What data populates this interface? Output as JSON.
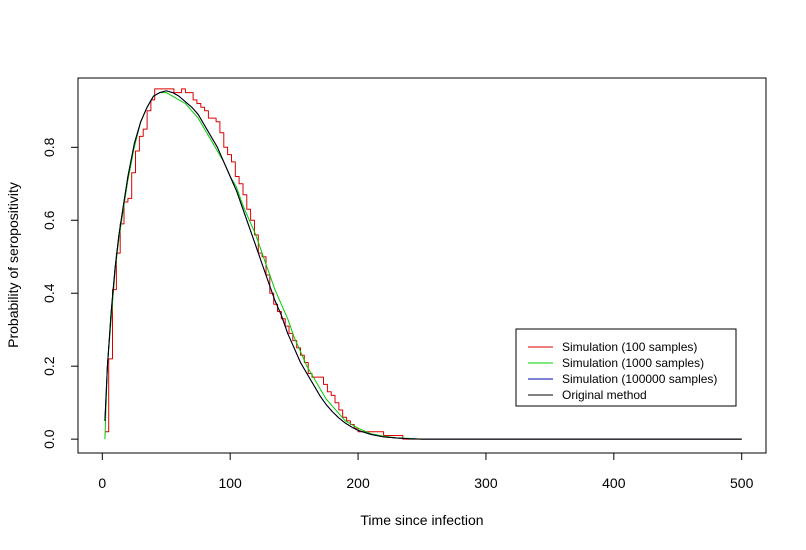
{
  "chart_data": {
    "type": "line",
    "title": "",
    "xlabel": "Time since infection",
    "ylabel": "Probability of seropositivity",
    "xlim": [
      -19,
      519
    ],
    "ylim": [
      -0.038,
      0.99
    ],
    "xticks": [
      0,
      100,
      200,
      300,
      400,
      500
    ],
    "yticks": [
      0.0,
      0.2,
      0.4,
      0.6,
      0.8
    ],
    "xtick_labels": [
      "0",
      "100",
      "200",
      "300",
      "400",
      "500"
    ],
    "ytick_labels": [
      "0.0",
      "0.2",
      "0.4",
      "0.6",
      "0.8"
    ],
    "grid": false,
    "legend_position": "bottom-right",
    "series": [
      {
        "name": "Simulation (100 samples)",
        "color": "#dd0000",
        "step": true,
        "x": [
          2,
          5,
          8,
          11,
          14,
          17,
          20,
          23,
          26,
          29,
          32,
          35,
          38,
          41,
          44,
          47,
          50,
          53,
          56,
          59,
          62,
          65,
          68,
          71,
          74,
          77,
          80,
          83,
          86,
          89,
          92,
          95,
          98,
          101,
          104,
          107,
          110,
          113,
          116,
          119,
          122,
          125,
          128,
          131,
          134,
          137,
          140,
          143,
          146,
          149,
          152,
          155,
          158,
          161,
          164,
          167,
          170,
          173,
          176,
          179,
          182,
          185,
          188,
          191,
          194,
          197,
          200,
          205,
          210,
          215,
          220,
          225,
          230,
          235,
          240,
          245,
          250,
          500
        ],
        "y": [
          0.02,
          0.22,
          0.41,
          0.51,
          0.59,
          0.65,
          0.66,
          0.73,
          0.79,
          0.83,
          0.85,
          0.9,
          0.93,
          0.96,
          0.96,
          0.96,
          0.96,
          0.96,
          0.95,
          0.95,
          0.96,
          0.95,
          0.95,
          0.93,
          0.92,
          0.91,
          0.9,
          0.88,
          0.88,
          0.87,
          0.84,
          0.8,
          0.78,
          0.76,
          0.72,
          0.7,
          0.67,
          0.63,
          0.6,
          0.56,
          0.51,
          0.5,
          0.45,
          0.4,
          0.37,
          0.35,
          0.33,
          0.31,
          0.29,
          0.27,
          0.25,
          0.23,
          0.21,
          0.18,
          0.17,
          0.17,
          0.17,
          0.15,
          0.13,
          0.12,
          0.1,
          0.08,
          0.06,
          0.05,
          0.04,
          0.03,
          0.02,
          0.02,
          0.02,
          0.02,
          0.01,
          0.01,
          0.01,
          0.0,
          0.0,
          0.0,
          0.0,
          0.0
        ]
      },
      {
        "name": "Simulation (1000 samples)",
        "color": "#00cc00",
        "step": false,
        "x": [
          2,
          4,
          7,
          10,
          13,
          16,
          20,
          25,
          30,
          35,
          40,
          45,
          50,
          55,
          60,
          65,
          70,
          75,
          80,
          85,
          90,
          95,
          100,
          105,
          110,
          115,
          120,
          125,
          130,
          135,
          140,
          145,
          150,
          155,
          160,
          165,
          170,
          175,
          180,
          185,
          190,
          195,
          200,
          210,
          220,
          230,
          240,
          250,
          500
        ],
        "y": [
          0.0,
          0.2,
          0.33,
          0.46,
          0.55,
          0.62,
          0.71,
          0.8,
          0.87,
          0.91,
          0.94,
          0.95,
          0.95,
          0.94,
          0.93,
          0.92,
          0.9,
          0.88,
          0.85,
          0.82,
          0.79,
          0.76,
          0.72,
          0.69,
          0.64,
          0.6,
          0.56,
          0.51,
          0.46,
          0.41,
          0.37,
          0.33,
          0.28,
          0.24,
          0.2,
          0.17,
          0.14,
          0.11,
          0.09,
          0.07,
          0.05,
          0.04,
          0.03,
          0.015,
          0.008,
          0.004,
          0.002,
          0.0,
          0.0
        ]
      },
      {
        "name": "Simulation (100000 samples)",
        "color": "#0000aa",
        "step": false,
        "x": [
          2,
          4,
          7,
          10,
          13,
          16,
          20,
          25,
          30,
          35,
          40,
          45,
          50,
          55,
          60,
          65,
          70,
          75,
          80,
          85,
          90,
          95,
          100,
          105,
          110,
          115,
          120,
          125,
          130,
          135,
          140,
          145,
          150,
          155,
          160,
          165,
          170,
          175,
          180,
          185,
          190,
          195,
          200,
          210,
          220,
          230,
          240,
          250,
          500
        ],
        "y": [
          0.05,
          0.2,
          0.35,
          0.47,
          0.56,
          0.63,
          0.72,
          0.81,
          0.87,
          0.91,
          0.94,
          0.95,
          0.955,
          0.95,
          0.94,
          0.925,
          0.91,
          0.89,
          0.86,
          0.83,
          0.8,
          0.76,
          0.72,
          0.68,
          0.63,
          0.58,
          0.53,
          0.48,
          0.43,
          0.38,
          0.34,
          0.29,
          0.25,
          0.21,
          0.18,
          0.15,
          0.12,
          0.095,
          0.075,
          0.058,
          0.044,
          0.033,
          0.024,
          0.013,
          0.006,
          0.003,
          0.001,
          0.0,
          0.0
        ]
      },
      {
        "name": "Original method",
        "color": "#000000",
        "step": false,
        "x": [
          2,
          4,
          7,
          10,
          13,
          16,
          20,
          25,
          30,
          35,
          40,
          45,
          50,
          55,
          60,
          65,
          70,
          75,
          80,
          85,
          90,
          95,
          100,
          105,
          110,
          115,
          120,
          125,
          130,
          135,
          140,
          145,
          150,
          155,
          160,
          165,
          170,
          175,
          180,
          185,
          190,
          195,
          200,
          210,
          220,
          230,
          240,
          250,
          500
        ],
        "y": [
          0.05,
          0.2,
          0.35,
          0.47,
          0.56,
          0.63,
          0.72,
          0.81,
          0.87,
          0.91,
          0.94,
          0.95,
          0.955,
          0.95,
          0.94,
          0.925,
          0.91,
          0.89,
          0.86,
          0.83,
          0.8,
          0.76,
          0.72,
          0.68,
          0.63,
          0.58,
          0.53,
          0.48,
          0.43,
          0.38,
          0.34,
          0.29,
          0.25,
          0.21,
          0.18,
          0.15,
          0.12,
          0.095,
          0.075,
          0.058,
          0.044,
          0.033,
          0.024,
          0.013,
          0.006,
          0.003,
          0.001,
          0.0,
          0.0
        ]
      }
    ]
  }
}
